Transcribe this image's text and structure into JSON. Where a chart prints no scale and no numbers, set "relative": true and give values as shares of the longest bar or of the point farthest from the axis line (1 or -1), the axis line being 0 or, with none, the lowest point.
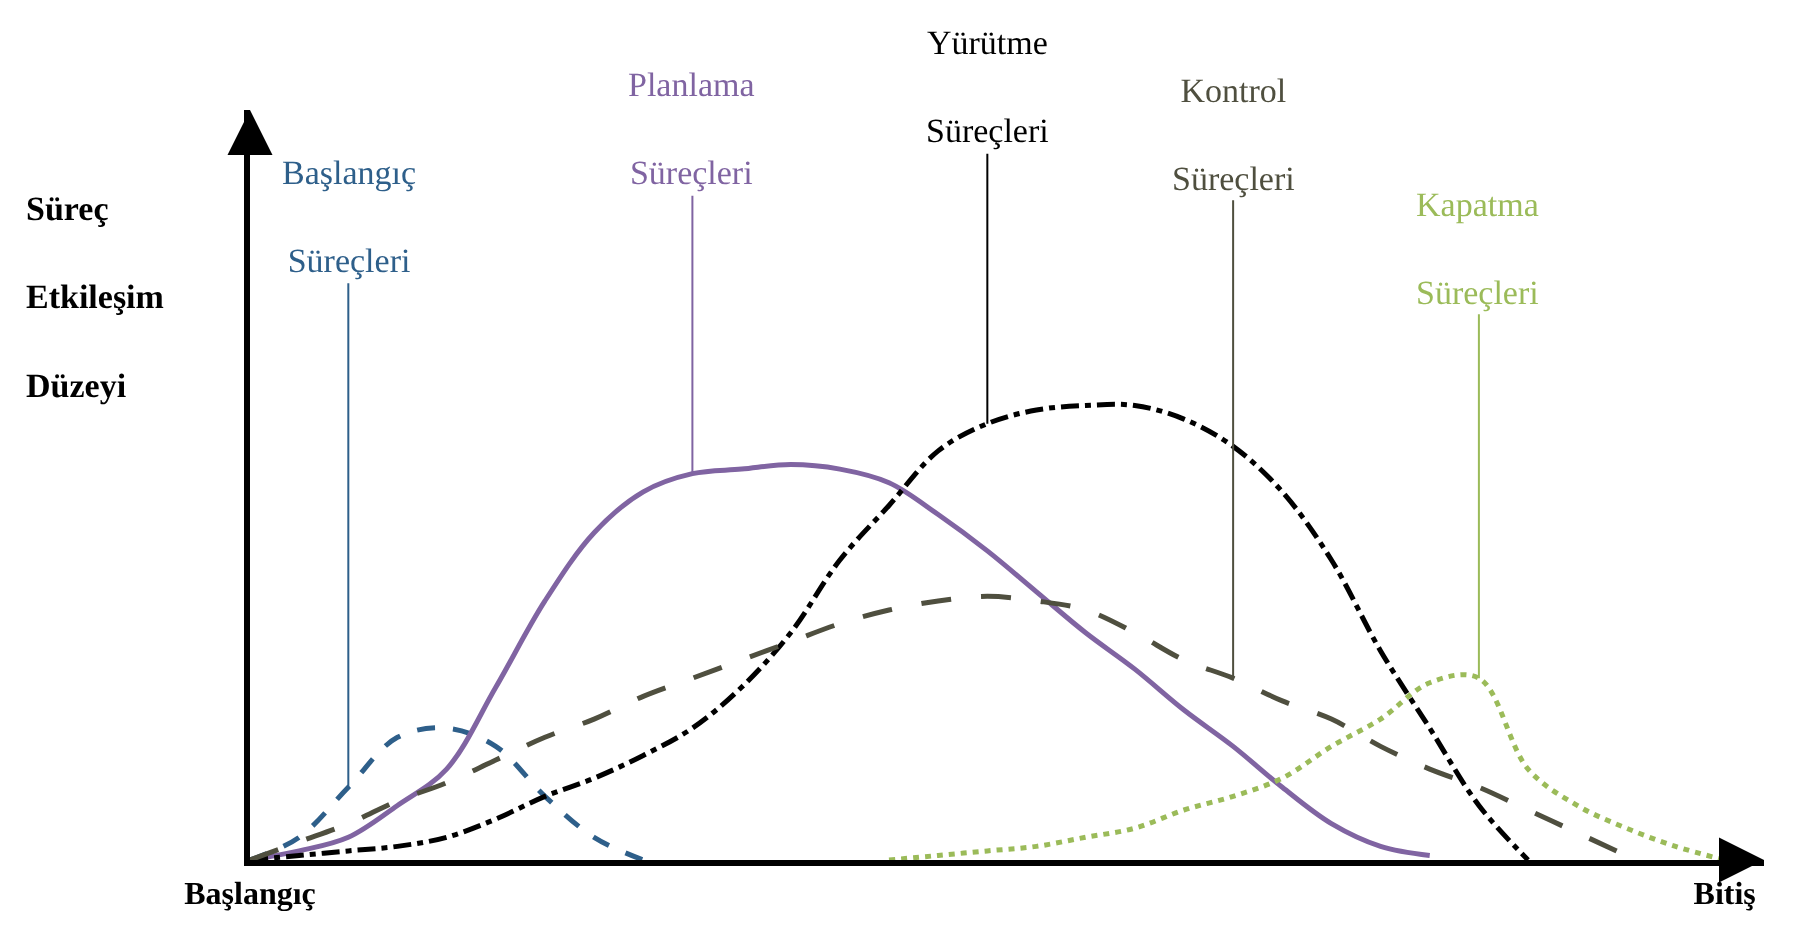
{
  "chart_data": {
    "type": "line",
    "relative": true,
    "ylabel": "Süreç Etkileşim Düzeyi",
    "categories": [
      "Başlangıç",
      null,
      null,
      null,
      null,
      null,
      null,
      null,
      null,
      null,
      null,
      null,
      null,
      null,
      null,
      null,
      null,
      null,
      null,
      null,
      null,
      null,
      null,
      null,
      null,
      null,
      null,
      null,
      null,
      null,
      "Bitiş"
    ],
    "series": [
      {
        "name": "Başlangıç Süreçleri",
        "color": "#2e5f8a",
        "line_style": "dashed",
        "values": [
          0,
          0.05,
          0.16,
          0.27,
          0.29,
          0.25,
          0.14,
          0.05,
          0,
          null,
          null,
          null,
          null,
          null,
          null,
          null,
          null,
          null,
          null,
          null,
          null,
          null,
          null,
          null,
          null,
          null,
          null,
          null,
          null,
          null,
          null
        ]
      },
      {
        "name": "Planlama Süreçleri",
        "color": "#8064a2",
        "line_style": "solid",
        "values": [
          0,
          0.02,
          0.05,
          0.12,
          0.2,
          0.38,
          0.57,
          0.72,
          0.81,
          0.85,
          0.86,
          0.87,
          0.86,
          0.83,
          0.76,
          0.68,
          0.59,
          0.5,
          0.42,
          0.33,
          0.25,
          0.16,
          0.08,
          0.03,
          0.01,
          null,
          null,
          null,
          null,
          null,
          null
        ]
      },
      {
        "name": "Yürütme Süreçleri",
        "color": "#000000",
        "line_style": "dashdot",
        "values": [
          0,
          0.01,
          0.02,
          0.03,
          0.05,
          0.09,
          0.14,
          0.18,
          0.23,
          0.29,
          0.38,
          0.5,
          0.66,
          0.78,
          0.9,
          0.96,
          0.99,
          1,
          1,
          0.97,
          0.91,
          0.81,
          0.66,
          0.46,
          0.29,
          0.12,
          0,
          null,
          null,
          null,
          null
        ]
      },
      {
        "name": "Kontrol Süreçleri",
        "color": "#4f4f3f",
        "line_style": "longdash",
        "values": [
          0,
          0.04,
          0.08,
          0.13,
          0.17,
          0.22,
          0.27,
          0.31,
          0.36,
          0.4,
          0.44,
          0.48,
          0.52,
          0.55,
          0.57,
          0.58,
          0.57,
          0.55,
          0.5,
          0.44,
          0.4,
          0.35,
          0.31,
          0.25,
          0.2,
          0.16,
          0.11,
          0.06,
          0.01,
          null,
          null
        ]
      },
      {
        "name": "Kapatma Süreçleri",
        "color": "#9bbb59",
        "line_style": "dotted",
        "values": [
          null,
          null,
          null,
          null,
          null,
          null,
          null,
          null,
          null,
          null,
          null,
          null,
          null,
          0,
          0.01,
          0.02,
          0.03,
          0.05,
          0.07,
          0.11,
          0.14,
          0.18,
          0.25,
          0.31,
          0.39,
          0.4,
          0.2,
          0.12,
          0.07,
          0.03,
          0
        ]
      }
    ]
  }
}
